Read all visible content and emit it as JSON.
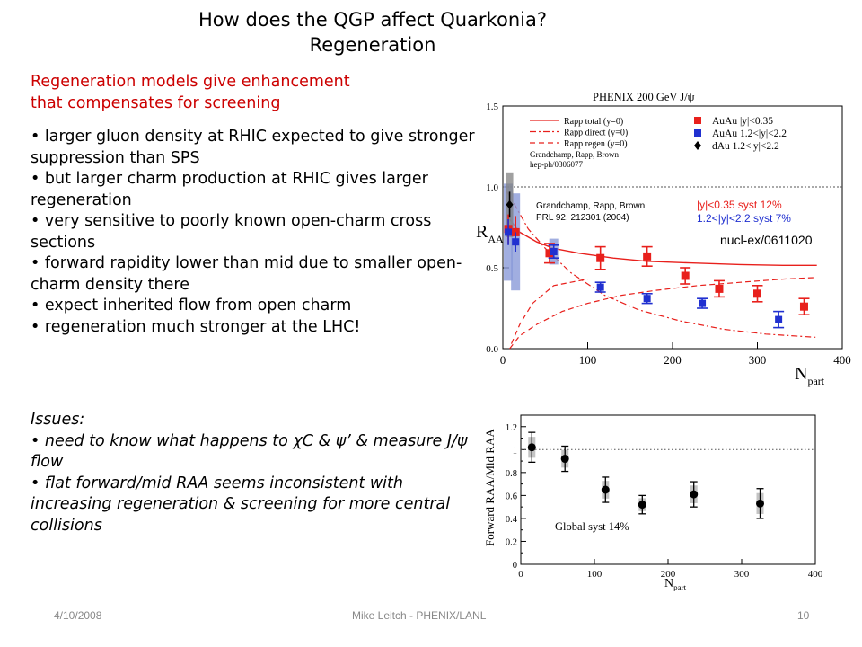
{
  "slide": {
    "title_line1": "How does the QGP affect Quarkonia?",
    "title_line2": "Regeneration",
    "intro_line1": "Regeneration models give enhancement",
    "intro_line2": "that compensates for screening",
    "bullets": [
      "• larger gluon density at RHIC expected to give stronger suppression than SPS",
      "• but larger charm production at RHIC gives larger regeneration",
      "• very sensitive to poorly known open-charm cross sections",
      "• forward rapidity lower than mid due to smaller open-charm density there",
      "• expect inherited flow from open charm",
      "• regeneration much stronger at the LHC!"
    ],
    "issues_heading": "Issues:",
    "issues": [
      "• need to know what happens to χC & ψ’ & measure J/ψ flow",
      "• flat forward/mid RAA seems inconsistent with increasing regeneration & screening for more central collisions"
    ],
    "footer_date": "4/10/2008",
    "footer_author": "Mike Leitch - PHENIX/LANL",
    "footer_page": "10"
  },
  "chart_data": [
    {
      "type": "scatter",
      "title": "PHENIX 200 GeV J/ψ",
      "xlabel": "Npart",
      "ylabel": "RAA",
      "xlim": [
        0,
        400
      ],
      "ylim": [
        0,
        1.5
      ],
      "x_ticks": [
        0,
        100,
        200,
        300,
        400
      ],
      "y_ticks": [
        0.0,
        0.5,
        1.0,
        1.5
      ],
      "reference_line": 1.0,
      "legend_position": "top",
      "legend_models": [
        "Rapp total (y=0)",
        "Rapp direct (y=0)",
        "Rapp regen (y=0)"
      ],
      "legend_note": "Grandchamp, Rapp, Brown hep-ph/0306077",
      "reference_note_line1": "Grandchamp, Rapp, Brown",
      "reference_note_line2": "PRL 92, 212301 (2004)",
      "syst_note_1": "|y|<0.35 syst 12%",
      "syst_note_2": "1.2<|y|<2.2 syst 7%",
      "preprint": "nucl-ex/0611020",
      "colors": {
        "auau_mid": "#e8201c",
        "auau_fwd": "#2030d0",
        "dau": "#000000",
        "syst_fwd": "#8a9ad8",
        "syst_dau": "#808080"
      },
      "series": [
        {
          "name": "AuAu |y|<0.35",
          "points": [
            {
              "x": 6.4,
              "y": 0.74,
              "err": 0.09
            },
            {
              "x": 15,
              "y": 0.72,
              "err": 0.1
            },
            {
              "x": 55,
              "y": 0.59,
              "err": 0.06
            },
            {
              "x": 115,
              "y": 0.56,
              "err": 0.07
            },
            {
              "x": 170,
              "y": 0.57,
              "err": 0.06
            },
            {
              "x": 215,
              "y": 0.45,
              "err": 0.05
            },
            {
              "x": 255,
              "y": 0.37,
              "err": 0.05
            },
            {
              "x": 300,
              "y": 0.34,
              "err": 0.05
            },
            {
              "x": 355,
              "y": 0.26,
              "err": 0.05
            }
          ]
        },
        {
          "name": "AuAu 1.2<|y|<2.2",
          "points": [
            {
              "x": 6.4,
              "y": 0.72,
              "err": 0.08
            },
            {
              "x": 15,
              "y": 0.66,
              "err": 0.06
            },
            {
              "x": 60,
              "y": 0.6,
              "err": 0.04
            },
            {
              "x": 115,
              "y": 0.38,
              "err": 0.03
            },
            {
              "x": 170,
              "y": 0.31,
              "err": 0.03
            },
            {
              "x": 235,
              "y": 0.28,
              "err": 0.03
            },
            {
              "x": 325,
              "y": 0.18,
              "err": 0.05
            }
          ]
        },
        {
          "name": "dAu 1.2<|y|<2.2",
          "points": [
            {
              "x": 8,
              "y": 0.89,
              "err": 0.08
            }
          ]
        }
      ],
      "model_curves": {
        "total": [
          [
            8,
            0.8
          ],
          [
            20,
            0.72
          ],
          [
            40,
            0.66
          ],
          [
            60,
            0.62
          ],
          [
            90,
            0.59
          ],
          [
            130,
            0.56
          ],
          [
            170,
            0.54
          ],
          [
            220,
            0.53
          ],
          [
            280,
            0.52
          ],
          [
            330,
            0.515
          ],
          [
            370,
            0.515
          ]
        ],
        "direct": [
          [
            5,
            0.97
          ],
          [
            15,
            0.88
          ],
          [
            30,
            0.74
          ],
          [
            50,
            0.62
          ],
          [
            80,
            0.47
          ],
          [
            120,
            0.33
          ],
          [
            160,
            0.24
          ],
          [
            210,
            0.17
          ],
          [
            260,
            0.12
          ],
          [
            310,
            0.09
          ],
          [
            370,
            0.07
          ]
        ],
        "regen": [
          [
            8,
            0.0
          ],
          [
            20,
            0.08
          ],
          [
            40,
            0.15
          ],
          [
            70,
            0.23
          ],
          [
            100,
            0.28
          ],
          [
            140,
            0.33
          ],
          [
            180,
            0.36
          ],
          [
            230,
            0.39
          ],
          [
            280,
            0.41
          ],
          [
            330,
            0.43
          ],
          [
            370,
            0.44
          ]
        ],
        "regen_upper": [
          [
            10,
            0.03
          ],
          [
            20,
            0.15
          ],
          [
            35,
            0.28
          ],
          [
            60,
            0.39
          ],
          [
            100,
            0.43
          ]
        ]
      }
    },
    {
      "type": "scatter",
      "xlabel": "Npart",
      "ylabel": "Forward RAA/Mid RAA",
      "xlim": [
        0,
        400
      ],
      "ylim": [
        0,
        1.3
      ],
      "x_ticks": [
        0,
        100,
        200,
        300,
        400
      ],
      "y_ticks": [
        0,
        0.2,
        0.4,
        0.6,
        0.8,
        1,
        1.2
      ],
      "reference_line": 1.0,
      "annotation": "Global syst 14%",
      "series": [
        {
          "name": "",
          "points": [
            {
              "x": 15,
              "y": 1.02,
              "err": 0.13
            },
            {
              "x": 60,
              "y": 0.92,
              "err": 0.11
            },
            {
              "x": 115,
              "y": 0.65,
              "err": 0.11
            },
            {
              "x": 165,
              "y": 0.52,
              "err": 0.08
            },
            {
              "x": 235,
              "y": 0.61,
              "err": 0.11
            },
            {
              "x": 325,
              "y": 0.53,
              "err": 0.13
            }
          ]
        }
      ]
    }
  ]
}
